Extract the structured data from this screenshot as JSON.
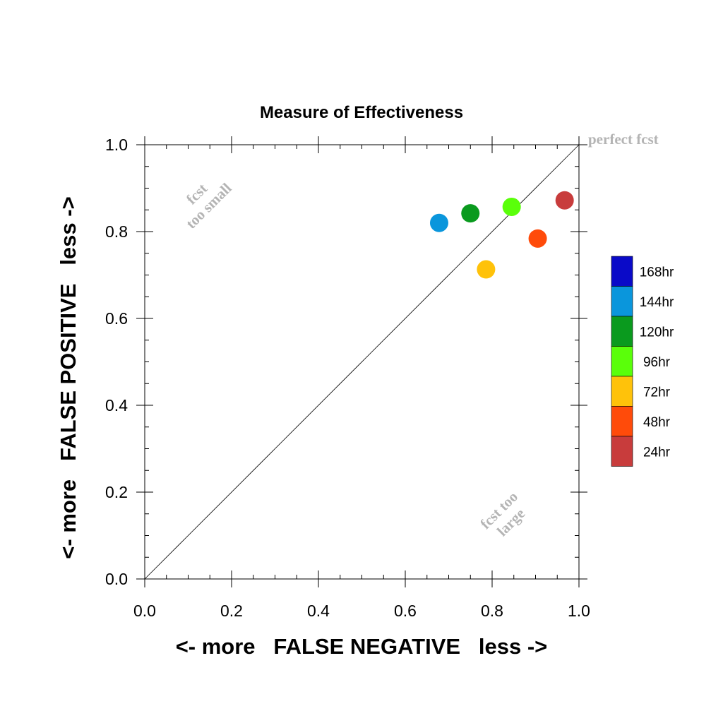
{
  "chart_data": {
    "type": "scatter",
    "title": "Measure of Effectiveness",
    "xlabel": "<- more   FALSE NEGATIVE   less ->",
    "ylabel": "<- more   FALSE POSITIVE   less ->",
    "xlim": [
      0.0,
      1.0
    ],
    "ylim": [
      0.0,
      1.0
    ],
    "xticks": [
      "0.0",
      "0.2",
      "0.4",
      "0.6",
      "0.8",
      "1.0"
    ],
    "yticks": [
      "0.0",
      "0.2",
      "0.4",
      "0.6",
      "0.8",
      "1.0"
    ],
    "grid": false,
    "diagonal": true,
    "annotations": {
      "top_right": "perfect fcst",
      "upper_left_line1": "fcst",
      "upper_left_line2": "too small",
      "lower_right_line1": "fcst too",
      "lower_right_line2": "large"
    },
    "legend": {
      "placement": "right",
      "entries": [
        {
          "label": "168hr",
          "color": "#0a0ac8"
        },
        {
          "label": "144hr",
          "color": "#0a96dc"
        },
        {
          "label": "120hr",
          "color": "#0a9a1e"
        },
        {
          "label": "96hr",
          "color": "#5aff0a"
        },
        {
          "label": "72hr",
          "color": "#ffc20a"
        },
        {
          "label": "48hr",
          "color": "#ff4b0a"
        },
        {
          "label": "24hr",
          "color": "#c83c3c"
        }
      ]
    },
    "series": [
      {
        "name": "144hr",
        "color": "#0a96dc",
        "x": 0.678,
        "y": 0.82
      },
      {
        "name": "120hr",
        "color": "#0a9a1e",
        "x": 0.75,
        "y": 0.842
      },
      {
        "name": "96hr",
        "color": "#5aff0a",
        "x": 0.845,
        "y": 0.857
      },
      {
        "name": "72hr",
        "color": "#ffc20a",
        "x": 0.786,
        "y": 0.713
      },
      {
        "name": "48hr",
        "color": "#ff4b0a",
        "x": 0.905,
        "y": 0.784
      },
      {
        "name": "24hr",
        "color": "#c83c3c",
        "x": 0.967,
        "y": 0.872
      }
    ]
  }
}
